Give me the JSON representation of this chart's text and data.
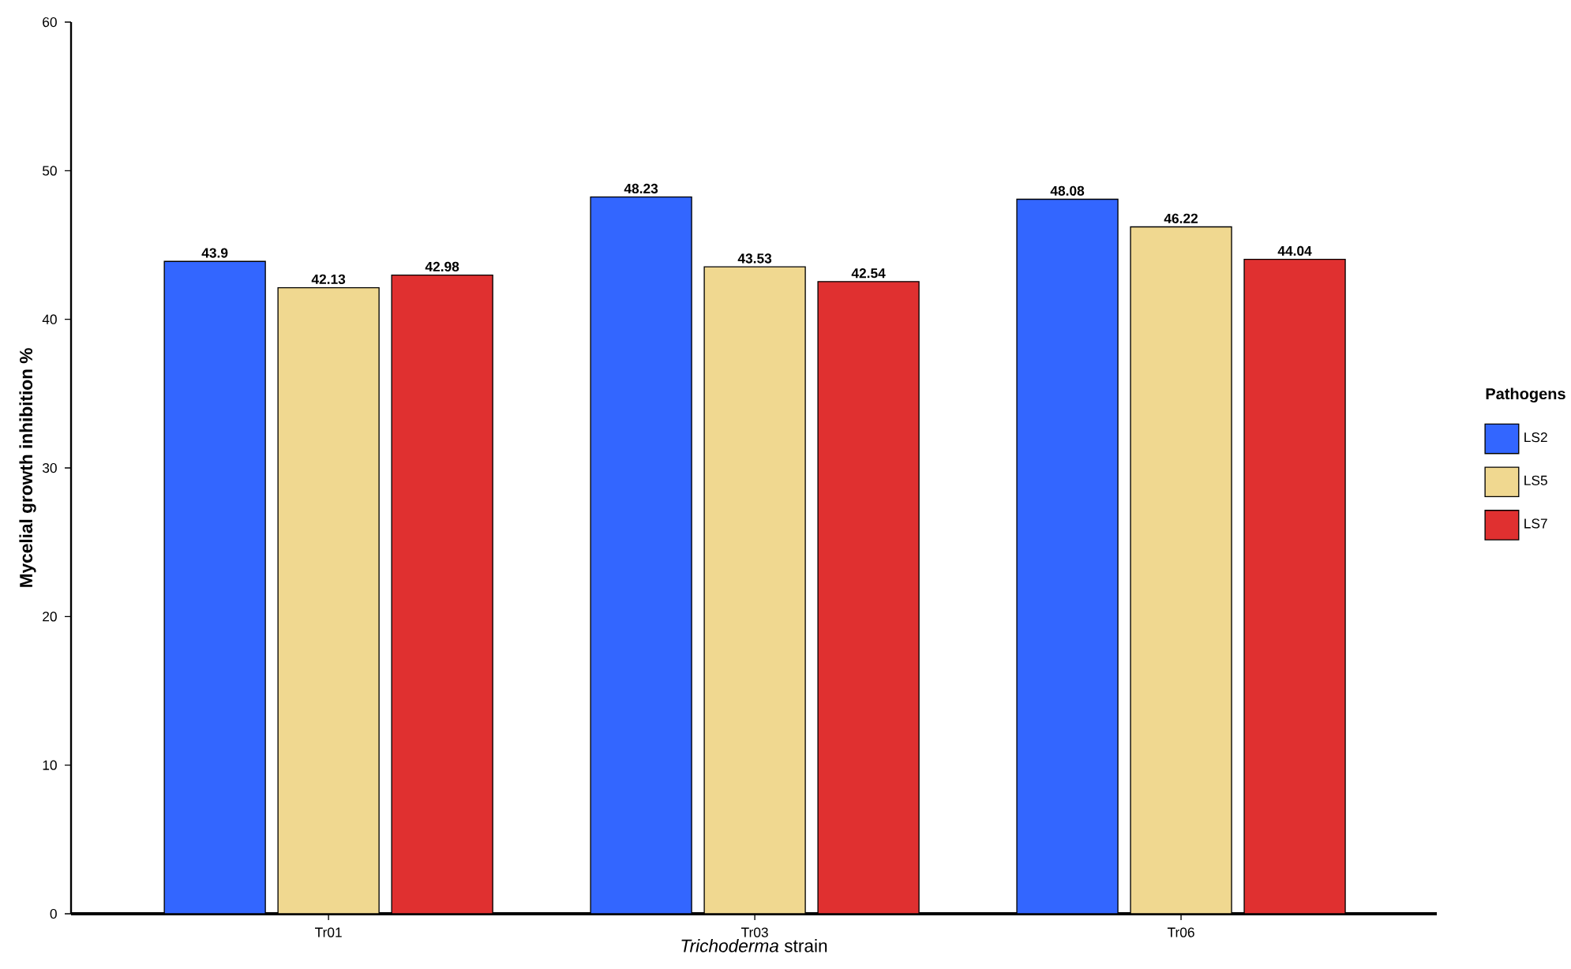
{
  "chart_data": {
    "type": "bar",
    "xlabel": "*Trichoderma* strain",
    "ylabel": "Mycelial growth inhibition %",
    "legend_title": "Pathogens",
    "categories": [
      "Tr01",
      "Tr03",
      "Tr06"
    ],
    "series": [
      {
        "name": "LS2",
        "color": "#3366ff",
        "values": [
          43.9,
          48.23,
          48.08
        ]
      },
      {
        "name": "LS5",
        "color": "#f0d890",
        "values": [
          42.13,
          43.53,
          46.22
        ]
      },
      {
        "name": "LS7",
        "color": "#e03030",
        "values": [
          42.98,
          42.54,
          44.04
        ]
      }
    ],
    "ylim": [
      0,
      60
    ],
    "yticks": [
      0,
      10,
      20,
      30,
      40,
      50,
      60
    ],
    "data_labels": true,
    "legend": "right",
    "grid": false
  }
}
